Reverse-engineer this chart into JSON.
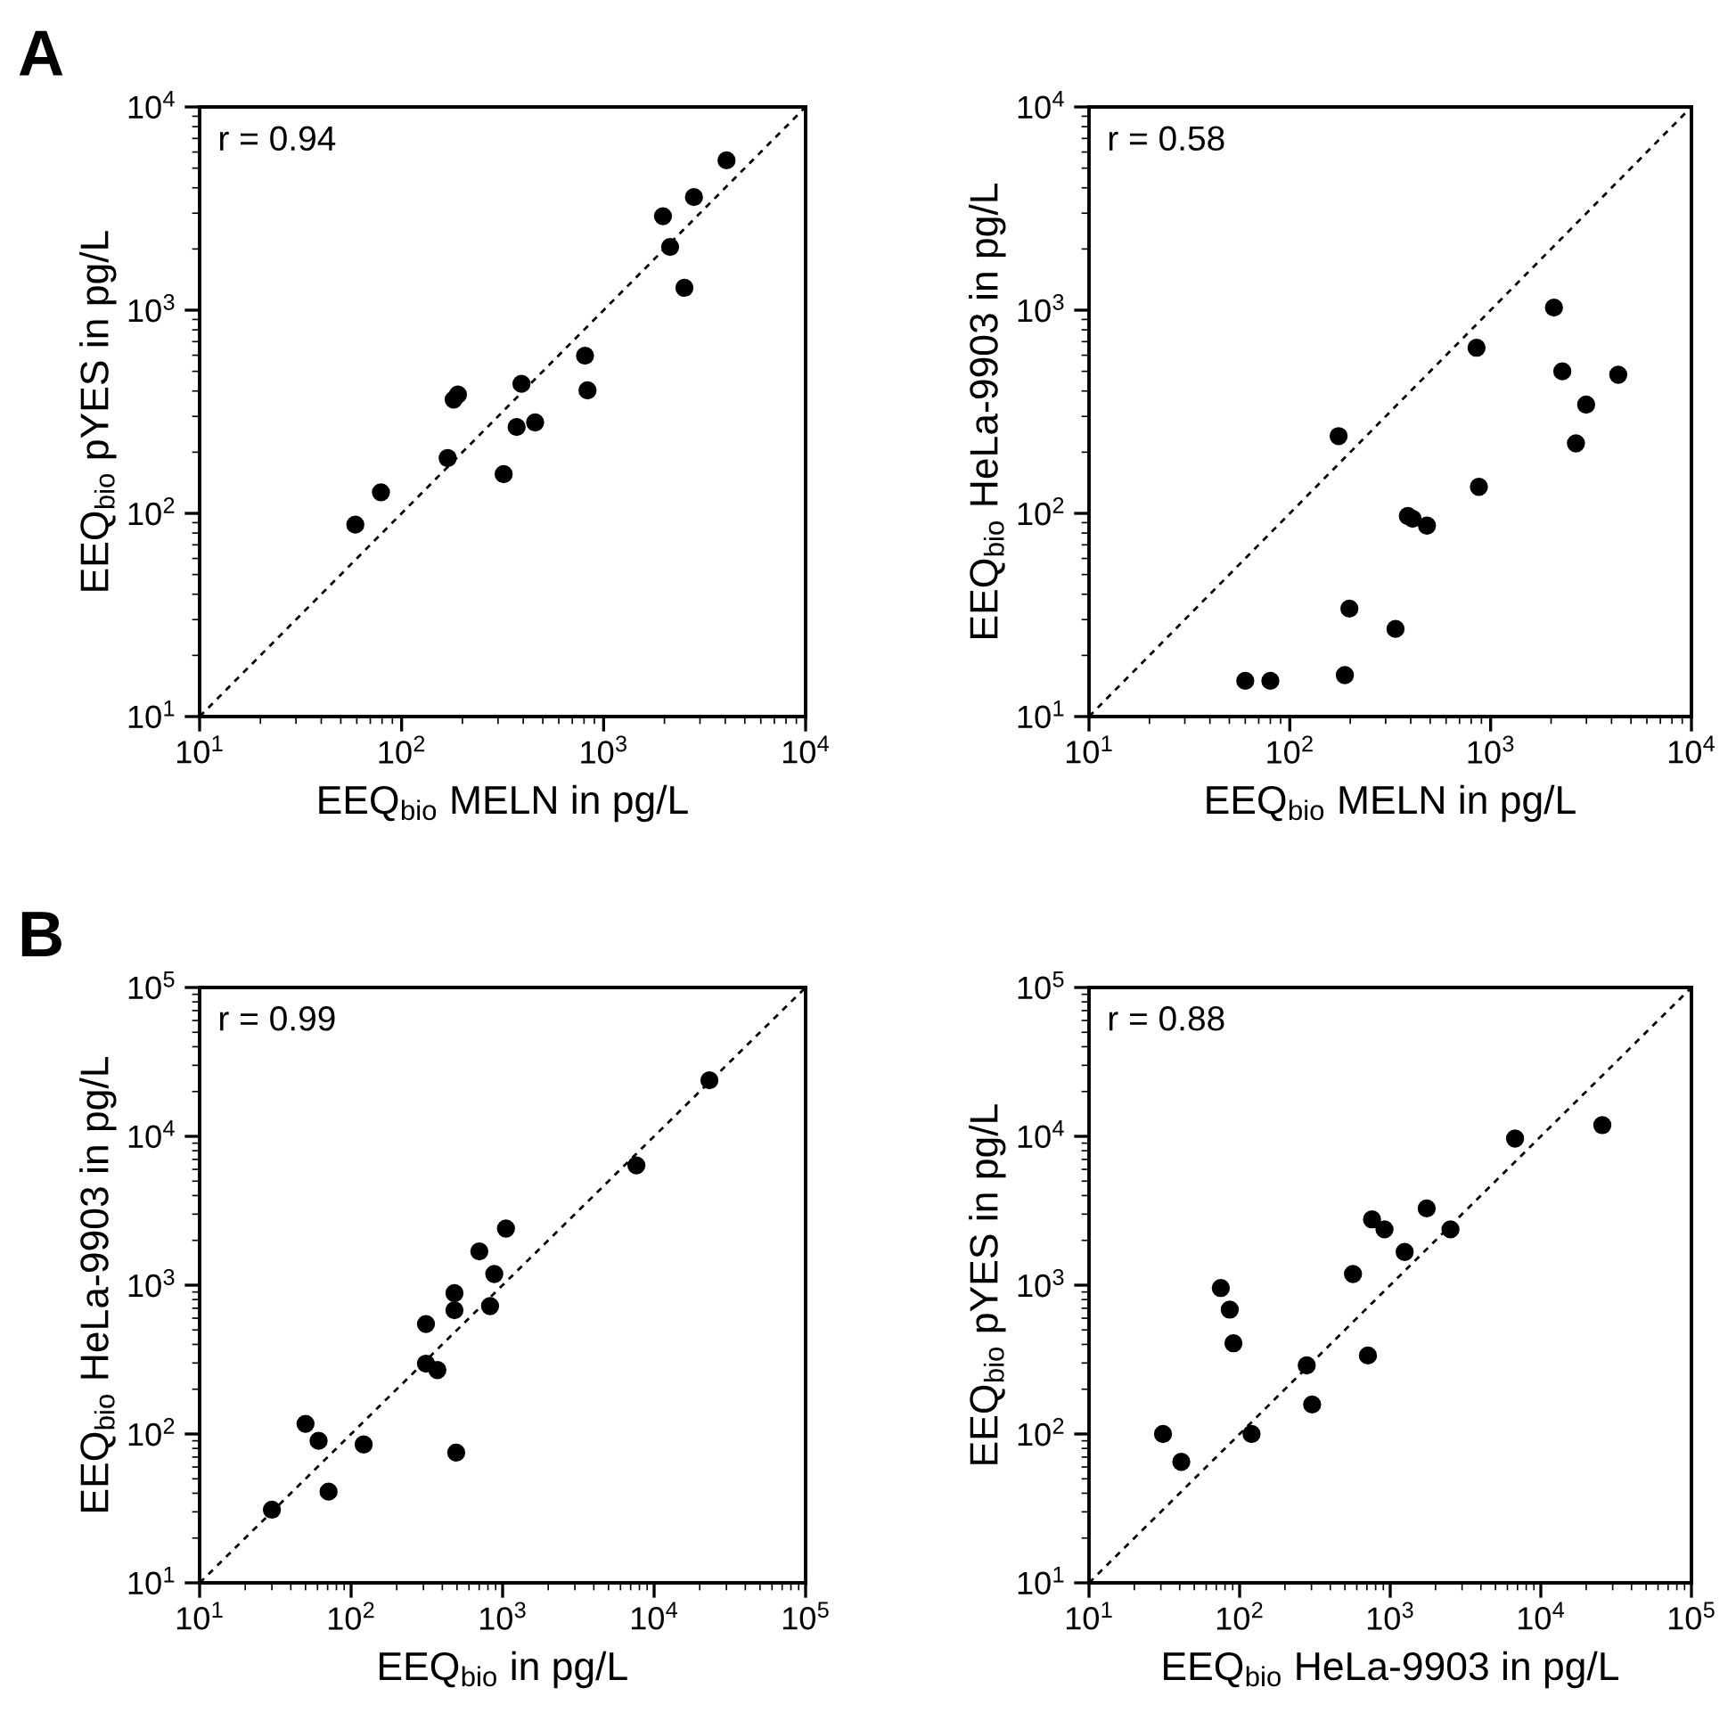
{
  "chart_data": [
    {
      "type": "scatter",
      "xlabel": "EEQ$_{bio}$ MELN in pg/L",
      "ylabel": "EEQ$_{bio}$ pYES in pg/L",
      "log": "xy",
      "grid": false,
      "annotations": [
        "r = 0.94",
        "A"
      ],
      "xlim": [
        10,
        10000
      ],
      "ylim": [
        10,
        10000
      ],
      "xticks": [
        {
          "value": 10,
          "label": "10$^{1}$"
        },
        {
          "value": 100,
          "label": "10$^{2}$"
        },
        {
          "value": 1000,
          "label": "10$^{3}$"
        },
        {
          "value": 10000,
          "label": "10$^{4}$"
        }
      ],
      "yticks": [
        {
          "value": 10,
          "label": "10$^{1}$"
        },
        {
          "value": 100,
          "label": "10$^{2}$"
        },
        {
          "value": 1000,
          "label": "10$^{3}$"
        },
        {
          "value": 10000,
          "label": "10$^{4}$"
        }
      ],
      "series": [
        {
          "type": "line",
          "marker": "none",
          "line_style": "dashed",
          "color": "#000000",
          "x": [
            10,
            10000
          ],
          "values": [
            10,
            10000
          ]
        },
        {
          "marker": "circle",
          "color": "#000000",
          "x": [
            59,
            79,
            169,
            181,
            190,
            320,
            371,
            392,
            458,
            809,
            832,
            1967,
            2134,
            2512,
            2800,
            4060
          ],
          "values": [
            88,
            127,
            187,
            363,
            384,
            156,
            266,
            434,
            280,
            597,
            403,
            2900,
            2046,
            1288,
            3600,
            5460
          ]
        }
      ]
    },
    {
      "type": "scatter",
      "xlabel": "EEQ$_{bio}$ MELN in pg/L",
      "ylabel": "EEQ$_{bio}$ HeLa-9903 in pg/L",
      "log": "xy",
      "grid": false,
      "annotations": [
        "r = 0.58"
      ],
      "xlim": [
        10,
        10000
      ],
      "ylim": [
        10,
        10000
      ],
      "xticks": [
        {
          "value": 10,
          "label": "10$^{1}$"
        },
        {
          "value": 100,
          "label": "10$^{2}$"
        },
        {
          "value": 1000,
          "label": "10$^{3}$"
        },
        {
          "value": 10000,
          "label": "10$^{4}$"
        }
      ],
      "yticks": [
        {
          "value": 10,
          "label": "10$^{1}$"
        },
        {
          "value": 100,
          "label": "10$^{2}$"
        },
        {
          "value": 1000,
          "label": "10$^{3}$"
        },
        {
          "value": 10000,
          "label": "10$^{4}$"
        }
      ],
      "series": [
        {
          "type": "line",
          "marker": "none",
          "line_style": "dashed",
          "color": "#000000",
          "x": [
            10,
            10000
          ],
          "values": [
            10,
            10000
          ]
        },
        {
          "marker": "circle",
          "color": "#000000",
          "x": [
            60,
            80,
            175,
            188,
            198,
            336,
            387,
            409,
            482,
            851,
            874,
            2067,
            2275,
            2660,
            2990,
            4320
          ],
          "values": [
            15,
            15,
            240,
            16,
            34,
            27,
            97,
            94,
            87,
            653,
            135,
            1030,
            500,
            221,
            343,
            481
          ]
        }
      ]
    },
    {
      "type": "scatter",
      "xlabel": "EEQ$_{bio}$ in pg/L",
      "ylabel": "EEQ$_{bio}$ HeLa-9903 in pg/L",
      "log": "xy",
      "grid": false,
      "annotations": [
        "r = 0.99",
        "B"
      ],
      "xlim": [
        10,
        100000
      ],
      "ylim": [
        10,
        100000
      ],
      "xticks": [
        {
          "value": 10,
          "label": "10$^{1}$"
        },
        {
          "value": 100,
          "label": "10$^{2}$"
        },
        {
          "value": 1000,
          "label": "10$^{3}$"
        },
        {
          "value": 10000,
          "label": "10$^{4}$"
        },
        {
          "value": 100000,
          "label": "10$^{5}$"
        }
      ],
      "yticks": [
        {
          "value": 10,
          "label": "10$^{1}$"
        },
        {
          "value": 100,
          "label": "10$^{2}$"
        },
        {
          "value": 1000,
          "label": "10$^{3}$"
        },
        {
          "value": 10000,
          "label": "10$^{4}$"
        },
        {
          "value": 100000,
          "label": "10$^{5}$"
        }
      ],
      "series": [
        {
          "type": "line",
          "marker": "none",
          "line_style": "dashed",
          "color": "#000000",
          "x": [
            10,
            100000
          ],
          "values": [
            10,
            100000
          ]
        },
        {
          "marker": "circle",
          "color": "#000000",
          "x": [
            30,
            50,
            61,
            71,
            121,
            312,
            312,
            371,
            481,
            481,
            494,
            702,
            826,
            881,
            1052,
            7640,
            23170
          ],
          "values": [
            31,
            117,
            90,
            41,
            85,
            297,
            548,
            269,
            883,
            679,
            75,
            1686,
            723,
            1188,
            2399,
            6380,
            23800
          ]
        }
      ]
    },
    {
      "type": "scatter",
      "xlabel": "EEQ$_{bio}$ HeLa-9903 in pg/L",
      "ylabel": "EEQ$_{bio}$ pYES in pg/L",
      "log": "xy",
      "grid": false,
      "annotations": [
        "r = 0.88"
      ],
      "xlim": [
        10,
        100000
      ],
      "ylim": [
        10,
        100000
      ],
      "xticks": [
        {
          "value": 10,
          "label": "10$^{1}$"
        },
        {
          "value": 100,
          "label": "10$^{2}$"
        },
        {
          "value": 1000,
          "label": "10$^{3}$"
        },
        {
          "value": 10000,
          "label": "10$^{4}$"
        },
        {
          "value": 100000,
          "label": "10$^{5}$"
        }
      ],
      "yticks": [
        {
          "value": 10,
          "label": "10$^{1}$"
        },
        {
          "value": 100,
          "label": "10$^{2}$"
        },
        {
          "value": 1000,
          "label": "10$^{3}$"
        },
        {
          "value": 10000,
          "label": "10$^{4}$"
        },
        {
          "value": 100000,
          "label": "10$^{5}$"
        }
      ],
      "series": [
        {
          "type": "line",
          "marker": "none",
          "line_style": "dashed",
          "color": "#000000",
          "x": [
            10,
            100000
          ],
          "values": [
            10,
            100000
          ]
        },
        {
          "marker": "circle",
          "color": "#000000",
          "x": [
            31,
            41,
            75,
            86,
            91,
            120,
            279,
            303,
            566,
            711,
            757,
            916,
            1247,
            1746,
            2512,
            6745,
            25600
          ],
          "values": [
            100,
            65,
            957,
            685,
            407,
            100,
            289,
            158,
            1188,
            337,
            2767,
            2371,
            1671,
            3281,
            2371,
            9660,
            11890
          ]
        }
      ]
    }
  ]
}
